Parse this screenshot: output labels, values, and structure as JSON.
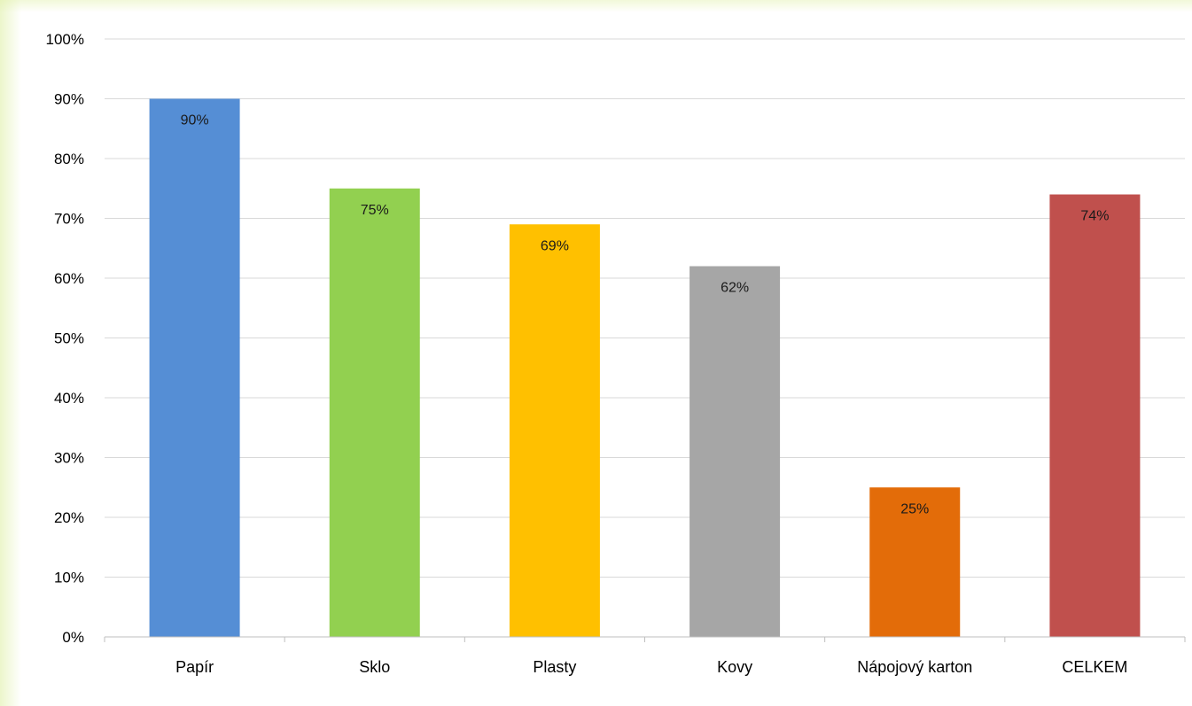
{
  "chart_data": {
    "type": "bar",
    "title": "",
    "xlabel": "",
    "ylabel": "",
    "categories": [
      "Papír",
      "Sklo",
      "Plasty",
      "Kovy",
      "Nápojový karton",
      "CELKEM"
    ],
    "values": [
      90,
      75,
      69,
      62,
      25,
      74
    ],
    "data_labels": [
      "90%",
      "75%",
      "69%",
      "62%",
      "25%",
      "74%"
    ],
    "colors": [
      "#558ED5",
      "#92D050",
      "#FFC000",
      "#A6A6A6",
      "#E36C09",
      "#C0504D"
    ],
    "ylim": [
      0,
      100
    ],
    "y_ticks": [
      0,
      10,
      20,
      30,
      40,
      50,
      60,
      70,
      80,
      90,
      100
    ],
    "y_tick_labels": [
      "0%",
      "10%",
      "20%",
      "30%",
      "40%",
      "50%",
      "60%",
      "70%",
      "80%",
      "90%",
      "100%"
    ],
    "grid": true,
    "legend": "none"
  }
}
